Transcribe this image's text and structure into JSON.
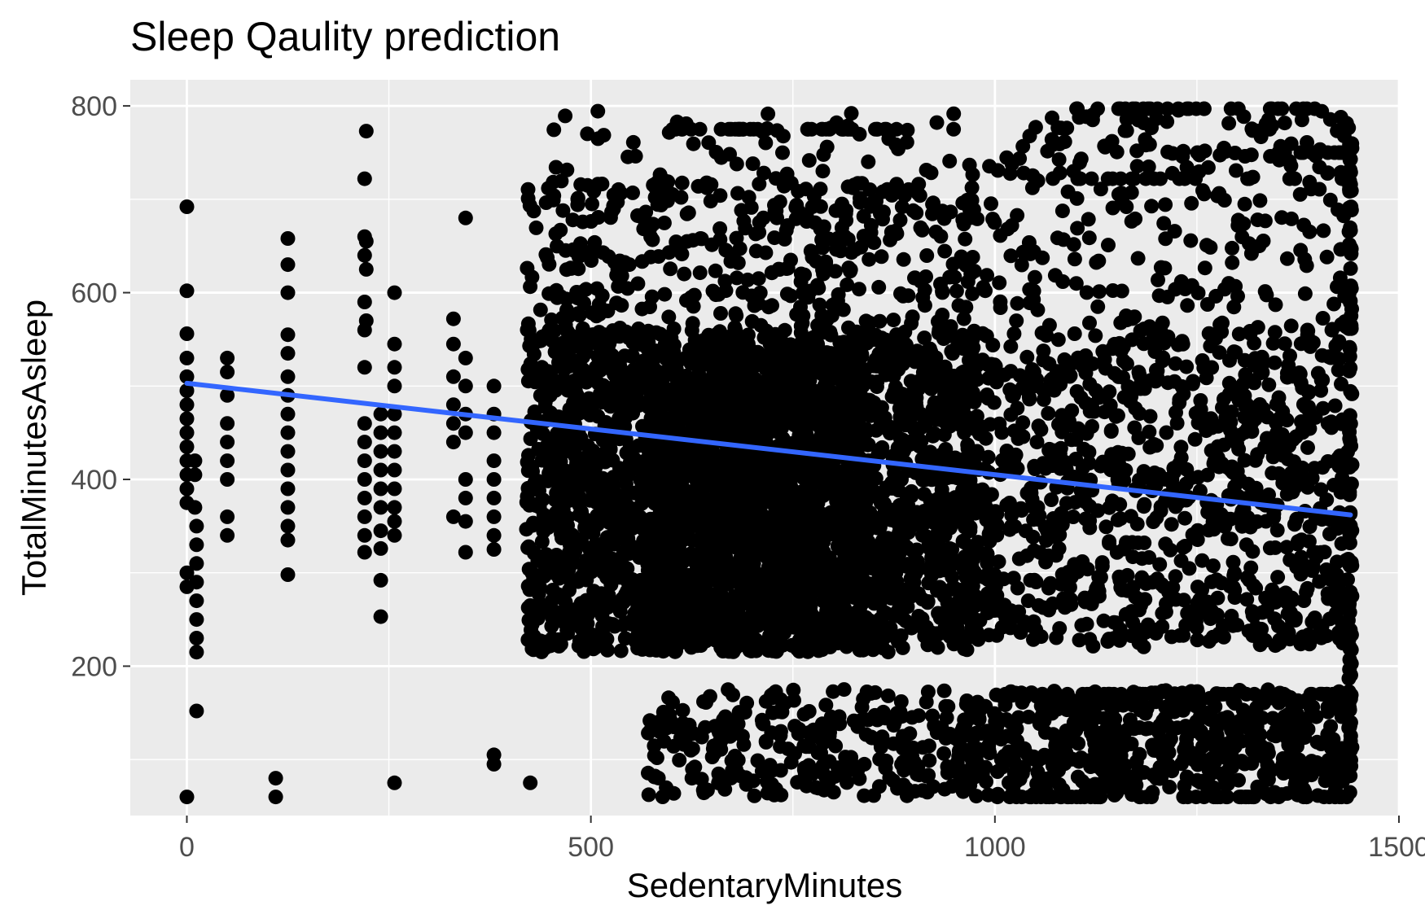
{
  "chart_data": {
    "type": "scatter",
    "title": "Sleep Qaulity prediction",
    "xlabel": "SedentaryMinutes",
    "ylabel": "TotalMinutesAsleep",
    "xlim": [
      -70,
      1500
    ],
    "ylim": [
      40,
      828
    ],
    "x_ticks": [
      0,
      500,
      1000,
      1500
    ],
    "x_tick_labels": [
      "0",
      "500",
      "1000",
      "1500"
    ],
    "y_ticks": [
      200,
      400,
      600,
      800
    ],
    "y_tick_labels": [
      "200",
      "400",
      "600",
      "800"
    ],
    "grid": true,
    "legend": "none",
    "colors": {
      "panel": "#ebebeb",
      "grid": "#ffffff",
      "points": "#000000",
      "trend": "#3366ff"
    },
    "trend_line": {
      "x": [
        0,
        1440
      ],
      "y": [
        503,
        362
      ]
    },
    "series": [
      {
        "values": [
          [
            0,
            692
          ],
          [
            0,
            602
          ],
          [
            0,
            556
          ],
          [
            0,
            530
          ],
          [
            0,
            510
          ],
          [
            0,
            495
          ],
          [
            0,
            480
          ],
          [
            0,
            465
          ],
          [
            0,
            450
          ],
          [
            0,
            435
          ],
          [
            0,
            420
          ],
          [
            0,
            405
          ],
          [
            0,
            390
          ],
          [
            0,
            375
          ],
          [
            0,
            300
          ],
          [
            0,
            285
          ],
          [
            0,
            60
          ],
          [
            10,
            420
          ],
          [
            10,
            405
          ],
          [
            10,
            370
          ],
          [
            12,
            350
          ],
          [
            12,
            330
          ],
          [
            12,
            310
          ],
          [
            12,
            290
          ],
          [
            12,
            270
          ],
          [
            12,
            250
          ],
          [
            12,
            230
          ],
          [
            12,
            215
          ],
          [
            12,
            152
          ],
          [
            50,
            530
          ],
          [
            50,
            515
          ],
          [
            50,
            490
          ],
          [
            50,
            460
          ],
          [
            50,
            440
          ],
          [
            50,
            420
          ],
          [
            50,
            400
          ],
          [
            50,
            360
          ],
          [
            50,
            340
          ],
          [
            110,
            80
          ],
          [
            110,
            60
          ],
          [
            125,
            658
          ],
          [
            125,
            630
          ],
          [
            125,
            600
          ],
          [
            125,
            555
          ],
          [
            125,
            535
          ],
          [
            125,
            510
          ],
          [
            125,
            490
          ],
          [
            125,
            470
          ],
          [
            125,
            450
          ],
          [
            125,
            430
          ],
          [
            125,
            410
          ],
          [
            125,
            390
          ],
          [
            125,
            370
          ],
          [
            125,
            350
          ],
          [
            125,
            335
          ],
          [
            125,
            298
          ],
          [
            220,
            722
          ],
          [
            220,
            660
          ],
          [
            220,
            640
          ],
          [
            220,
            590
          ],
          [
            220,
            560
          ],
          [
            220,
            520
          ],
          [
            220,
            460
          ],
          [
            220,
            440
          ],
          [
            220,
            420
          ],
          [
            220,
            400
          ],
          [
            220,
            380
          ],
          [
            220,
            360
          ],
          [
            220,
            340
          ],
          [
            220,
            322
          ],
          [
            222,
            773
          ],
          [
            222,
            655
          ],
          [
            222,
            625
          ],
          [
            222,
            570
          ],
          [
            240,
            470
          ],
          [
            240,
            450
          ],
          [
            240,
            430
          ],
          [
            240,
            410
          ],
          [
            240,
            390
          ],
          [
            240,
            370
          ],
          [
            240,
            345
          ],
          [
            240,
            326
          ],
          [
            240,
            292
          ],
          [
            240,
            253
          ],
          [
            257,
            600
          ],
          [
            257,
            545
          ],
          [
            257,
            520
          ],
          [
            257,
            500
          ],
          [
            257,
            470
          ],
          [
            257,
            450
          ],
          [
            257,
            430
          ],
          [
            257,
            410
          ],
          [
            257,
            390
          ],
          [
            257,
            370
          ],
          [
            257,
            355
          ],
          [
            257,
            340
          ],
          [
            257,
            75
          ],
          [
            330,
            572
          ],
          [
            330,
            545
          ],
          [
            330,
            510
          ],
          [
            330,
            480
          ],
          [
            330,
            460
          ],
          [
            330,
            440
          ],
          [
            330,
            360
          ],
          [
            345,
            680
          ],
          [
            345,
            530
          ],
          [
            345,
            500
          ],
          [
            345,
            470
          ],
          [
            345,
            450
          ],
          [
            345,
            400
          ],
          [
            345,
            380
          ],
          [
            345,
            355
          ],
          [
            345,
            322
          ],
          [
            380,
            500
          ],
          [
            380,
            470
          ],
          [
            380,
            450
          ],
          [
            380,
            420
          ],
          [
            380,
            400
          ],
          [
            380,
            380
          ],
          [
            380,
            360
          ],
          [
            380,
            340
          ],
          [
            380,
            325
          ],
          [
            380,
            105
          ],
          [
            380,
            95
          ],
          [
            425,
            75
          ]
        ],
        "clusters": [
          {
            "x": [
              420,
              980
            ],
            "y": [
              215,
              560
            ],
            "n": 2400
          },
          {
            "x": [
              570,
              840
            ],
            "y": [
              215,
              540
            ],
            "n": 1400
          },
          {
            "x": [
              420,
              980
            ],
            "y": [
              560,
              720
            ],
            "n": 380
          },
          {
            "x": [
              440,
              960
            ],
            "y": [
              700,
              795
            ],
            "n": 70
          },
          {
            "x": [
              570,
              980
            ],
            "y": [
              60,
              175
            ],
            "n": 300
          },
          {
            "x": [
              960,
              1440
            ],
            "y": [
              220,
              560
            ],
            "n": 950
          },
          {
            "x": [
              960,
              1440
            ],
            "y": [
              560,
              760
            ],
            "n": 210
          },
          {
            "x": [
              960,
              1440
            ],
            "y": [
              60,
              175
            ],
            "n": 560
          },
          {
            "x": [
              1040,
              1440
            ],
            "y": [
              745,
              798
            ],
            "n": 60
          }
        ],
        "rows": [
          {
            "x": [
              1100,
              1400
            ],
            "y": 797,
            "n": 30
          },
          {
            "x": [
              1350,
              1440
            ],
            "y": 750,
            "n": 12
          },
          {
            "x": [
              1100,
              1440
            ],
            "y": 722,
            "n": 20
          },
          {
            "x": [
              1000,
              1440
            ],
            "y": 170,
            "n": 45
          },
          {
            "x": [
              1000,
              1440
            ],
            "y": 60,
            "n": 60
          },
          {
            "x": [
              600,
              950
            ],
            "y": 775,
            "n": 40
          },
          {
            "x": [
              1438,
              1442
            ],
            "y": [
              60,
              760
            ],
            "n": 110
          }
        ]
      }
    ]
  }
}
